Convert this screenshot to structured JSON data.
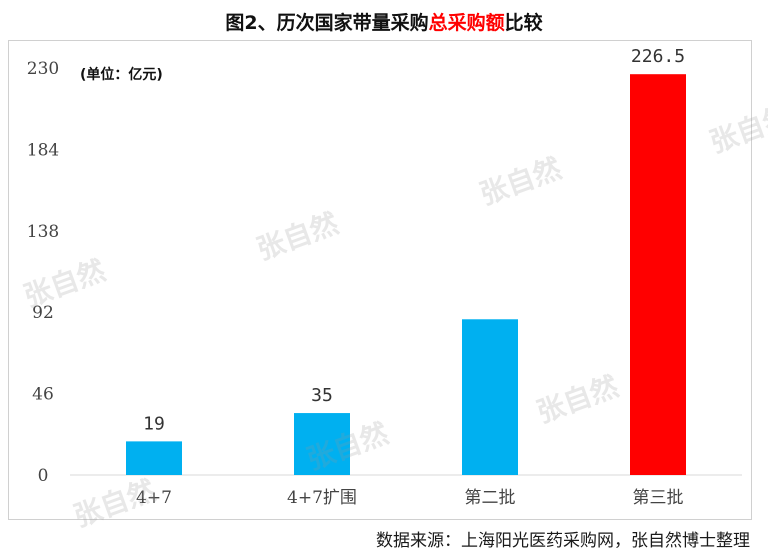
{
  "title": {
    "main": "图2、历次国家带量采购",
    "highlight": "总采购额",
    "suffix": "比较"
  },
  "unit_label": "(单位：亿元)",
  "source": "数据来源：上海阳光医药采购网，张自然博士整理",
  "watermark": "张自然",
  "colors": {
    "bar_default": "#00b0f0",
    "bar_highlight": "#ff0000",
    "title_highlight": "#ff0000"
  },
  "chart_data": {
    "type": "bar",
    "categories": [
      "4+7",
      "4+7扩围",
      "第二批",
      "第三批"
    ],
    "values": [
      19,
      35,
      88,
      226.5
    ],
    "data_labels": [
      "19",
      "35",
      "",
      "226.5"
    ],
    "highlight_index": 3,
    "yticks": [
      "0",
      "46",
      "92",
      "138",
      "184",
      "230"
    ],
    "ylim": [
      0,
      230
    ],
    "ylabel": "",
    "xlabel": "",
    "grid": false,
    "legend": "none"
  }
}
